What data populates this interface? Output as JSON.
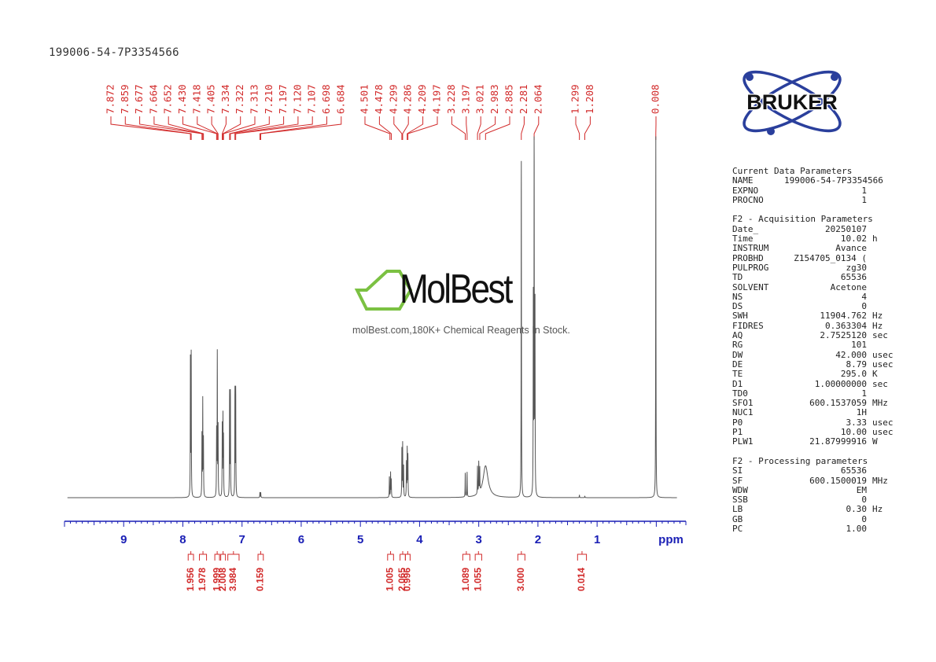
{
  "sample_id": "199006-54-7P3354566",
  "colors": {
    "peak_labels": "#d22b2b",
    "axis": "#1a1fb5",
    "spectrum": "#555555",
    "logo_blue": "#2a3f9c",
    "watermark_green": "#7bc142"
  },
  "watermark": {
    "brand": "MolBest",
    "tagline": "molBest.com,180K+ Chemical Reagents In Stock."
  },
  "logo": {
    "text": "BRUKER"
  },
  "chart_data": {
    "type": "line",
    "title": "",
    "xlabel": "ppm",
    "xlim": [
      9.0,
      -0.5
    ],
    "x_reversed": true,
    "x_ticks": [
      9,
      8,
      7,
      6,
      5,
      4,
      3,
      2,
      1
    ],
    "peak_labels": [
      "7.872",
      "7.859",
      "7.677",
      "7.664",
      "7.652",
      "7.430",
      "7.418",
      "7.405",
      "7.334",
      "7.322",
      "7.313",
      "7.210",
      "7.197",
      "7.120",
      "7.107",
      "6.698",
      "6.684",
      "4.501",
      "4.478",
      "4.299",
      "4.286",
      "4.209",
      "4.197",
      "3.228",
      "3.197",
      "3.021",
      "2.983",
      "2.885",
      "2.281",
      "2.064",
      "1.299",
      "1.208",
      "0.008"
    ],
    "integrals": [
      {
        "value": "1.956",
        "from": 7.91,
        "to": 7.82
      },
      {
        "value": "1.978",
        "from": 7.72,
        "to": 7.6
      },
      {
        "value": "1.999",
        "from": 7.46,
        "to": 7.38
      },
      {
        "value": "2.008",
        "from": 7.36,
        "to": 7.28
      },
      {
        "value": "3.984",
        "from": 7.24,
        "to": 7.05
      },
      {
        "value": "0.159",
        "from": 6.73,
        "to": 6.64
      },
      {
        "value": "1.005",
        "from": 4.54,
        "to": 4.44
      },
      {
        "value": "2.065",
        "from": 4.33,
        "to": 4.24
      },
      {
        "value": "0.996",
        "from": 4.24,
        "to": 4.16
      },
      {
        "value": "1.089",
        "from": 3.27,
        "to": 3.15
      },
      {
        "value": "1.055",
        "from": 3.06,
        "to": 2.95
      },
      {
        "value": "3.000",
        "from": 2.34,
        "to": 2.22
      },
      {
        "value": "0.014",
        "from": 1.33,
        "to": 1.18
      }
    ],
    "peaks": [
      {
        "ppm": 7.872,
        "h": 0.4
      },
      {
        "ppm": 7.859,
        "h": 0.4
      },
      {
        "ppm": 7.677,
        "h": 0.18
      },
      {
        "ppm": 7.664,
        "h": 0.27
      },
      {
        "ppm": 7.652,
        "h": 0.16
      },
      {
        "ppm": 7.43,
        "h": 0.18
      },
      {
        "ppm": 7.418,
        "h": 0.4
      },
      {
        "ppm": 7.405,
        "h": 0.2
      },
      {
        "ppm": 7.334,
        "h": 0.2
      },
      {
        "ppm": 7.322,
        "h": 0.22
      },
      {
        "ppm": 7.313,
        "h": 0.16
      },
      {
        "ppm": 7.21,
        "h": 0.3
      },
      {
        "ppm": 7.197,
        "h": 0.3
      },
      {
        "ppm": 7.12,
        "h": 0.31
      },
      {
        "ppm": 7.107,
        "h": 0.31
      },
      {
        "ppm": 6.698,
        "h": 0.015
      },
      {
        "ppm": 6.684,
        "h": 0.015
      },
      {
        "ppm": 4.51,
        "h": 0.06
      },
      {
        "ppm": 4.49,
        "h": 0.07
      },
      {
        "ppm": 4.478,
        "h": 0.05
      },
      {
        "ppm": 4.299,
        "h": 0.14
      },
      {
        "ppm": 4.286,
        "h": 0.15
      },
      {
        "ppm": 4.27,
        "h": 0.09
      },
      {
        "ppm": 4.222,
        "h": 0.1
      },
      {
        "ppm": 4.209,
        "h": 0.14
      },
      {
        "ppm": 4.197,
        "h": 0.12
      },
      {
        "ppm": 3.228,
        "h": 0.07
      },
      {
        "ppm": 3.197,
        "h": 0.07
      },
      {
        "ppm": 3.021,
        "h": 0.08
      },
      {
        "ppm": 3.0,
        "h": 0.09
      },
      {
        "ppm": 2.983,
        "h": 0.07
      },
      {
        "ppm": 2.885,
        "h": 0.09,
        "w": 0.05
      },
      {
        "ppm": 2.281,
        "h": 0.98
      },
      {
        "ppm": 2.064,
        "h": 1.02
      },
      {
        "ppm": 2.05,
        "h": 0.55
      },
      {
        "ppm": 2.078,
        "h": 0.55
      },
      {
        "ppm": 1.299,
        "h": 0.008
      },
      {
        "ppm": 1.208,
        "h": 0.005
      },
      {
        "ppm": 0.008,
        "h": 1.02
      }
    ]
  },
  "parameters": {
    "current": {
      "title": "Current Data Parameters",
      "rows": [
        {
          "k": "NAME",
          "v": "199006-54-7P3354566",
          "u": ""
        },
        {
          "k": "EXPNO",
          "v": "1",
          "u": ""
        },
        {
          "k": "PROCNO",
          "v": "1",
          "u": ""
        }
      ]
    },
    "acquisition": {
      "title": "F2 - Acquisition Parameters",
      "rows": [
        {
          "k": "Date_",
          "v": "20250107",
          "u": ""
        },
        {
          "k": "Time",
          "v": "10.02",
          "u": "h"
        },
        {
          "k": "INSTRUM",
          "v": "Avance",
          "u": ""
        },
        {
          "k": "PROBHD",
          "v": "Z154705_0134 (",
          "u": ""
        },
        {
          "k": "PULPROG",
          "v": "zg30",
          "u": ""
        },
        {
          "k": "TD",
          "v": "65536",
          "u": ""
        },
        {
          "k": "SOLVENT",
          "v": "Acetone",
          "u": ""
        },
        {
          "k": "NS",
          "v": "4",
          "u": ""
        },
        {
          "k": "DS",
          "v": "0",
          "u": ""
        },
        {
          "k": "SWH",
          "v": "11904.762",
          "u": "Hz"
        },
        {
          "k": "FIDRES",
          "v": "0.363304",
          "u": "Hz"
        },
        {
          "k": "AQ",
          "v": "2.7525120",
          "u": "sec"
        },
        {
          "k": "RG",
          "v": "101",
          "u": ""
        },
        {
          "k": "DW",
          "v": "42.000",
          "u": "usec"
        },
        {
          "k": "DE",
          "v": "8.79",
          "u": "usec"
        },
        {
          "k": "TE",
          "v": "295.0",
          "u": "K"
        },
        {
          "k": "D1",
          "v": "1.00000000",
          "u": "sec"
        },
        {
          "k": "TD0",
          "v": "1",
          "u": ""
        },
        {
          "k": "SFO1",
          "v": "600.1537059",
          "u": "MHz"
        },
        {
          "k": "NUC1",
          "v": "1H",
          "u": ""
        },
        {
          "k": "P0",
          "v": "3.33",
          "u": "usec"
        },
        {
          "k": "P1",
          "v": "10.00",
          "u": "usec"
        },
        {
          "k": "PLW1",
          "v": "21.87999916",
          "u": "W"
        }
      ]
    },
    "processing": {
      "title": "F2 - Processing parameters",
      "rows": [
        {
          "k": "SI",
          "v": "65536",
          "u": ""
        },
        {
          "k": "SF",
          "v": "600.1500019",
          "u": "MHz"
        },
        {
          "k": "WDW",
          "v": "EM",
          "u": ""
        },
        {
          "k": "SSB",
          "v": "0",
          "u": ""
        },
        {
          "k": "LB",
          "v": "0.30",
          "u": "Hz"
        },
        {
          "k": "GB",
          "v": "0",
          "u": ""
        },
        {
          "k": "PC",
          "v": "1.00",
          "u": ""
        }
      ]
    }
  }
}
